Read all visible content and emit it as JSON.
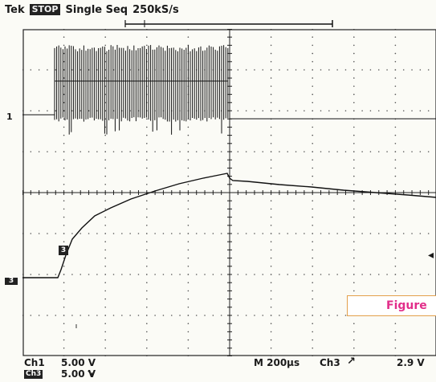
{
  "header": {
    "brand": "Tek",
    "run_state": "STOP",
    "mode": "Single Seq",
    "sample_rate": "250kS/s"
  },
  "markers": {
    "ch1": "1",
    "ch3": "3",
    "ch3_trace": "3"
  },
  "caption": {
    "text": "Figure"
  },
  "footer": {
    "ch1_label": "Ch1",
    "ch1_scale": "5.00 V",
    "ch3_label": "Ch3",
    "ch3_scale": "5.00 V",
    "timebase": "M 200µs",
    "trigger_source": "Ch3",
    "trigger_level": "2.9 V"
  },
  "colors": {
    "background": "#fbfbf6",
    "grid": "#555555",
    "trace": "#111111",
    "caption_border": "#e3a04b",
    "caption_text": "#e22e8a"
  }
}
